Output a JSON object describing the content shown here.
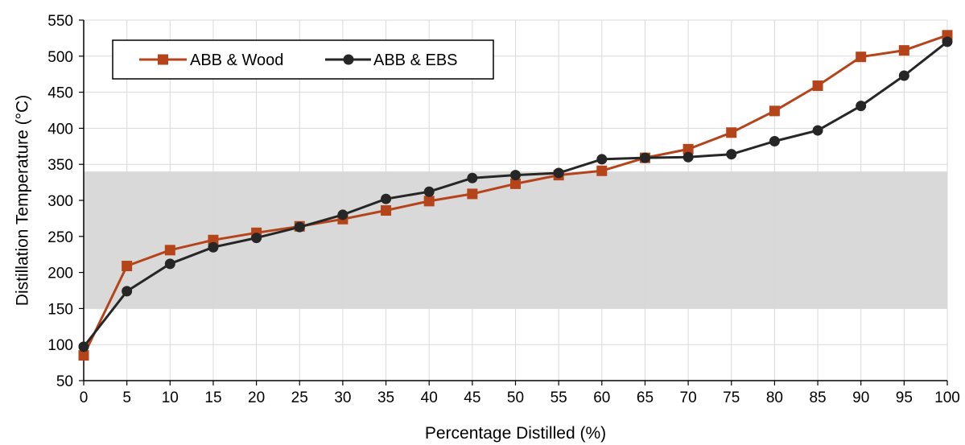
{
  "chart_data": {
    "type": "line",
    "title": "",
    "xlabel": "Percentage Distilled (%)",
    "ylabel": "Distillation Temperature (°C)",
    "xlim": [
      0,
      100
    ],
    "ylim": [
      50,
      550
    ],
    "x_ticks": [
      0,
      5,
      10,
      15,
      20,
      25,
      30,
      35,
      40,
      45,
      50,
      55,
      60,
      65,
      70,
      75,
      80,
      85,
      90,
      95,
      100
    ],
    "y_ticks": [
      50,
      100,
      150,
      200,
      250,
      300,
      350,
      400,
      450,
      500,
      550
    ],
    "x_tick_labels": [
      "0",
      "5",
      "10",
      "15",
      "20",
      "25",
      "30",
      "35",
      "40",
      "45",
      "50",
      "55",
      "60",
      "65",
      "70",
      "75",
      "80",
      "85",
      "90",
      "95",
      "100"
    ],
    "y_tick_labels": [
      "50",
      "100",
      "150",
      "200",
      "250",
      "300",
      "350",
      "400",
      "450",
      "500",
      "550"
    ],
    "grid": true,
    "legend_position": "top-left",
    "shaded_band": {
      "y_range": [
        150,
        340
      ],
      "color": "#d9d9d9"
    },
    "x": [
      0,
      5,
      10,
      15,
      20,
      25,
      30,
      35,
      40,
      45,
      50,
      55,
      60,
      65,
      70,
      75,
      80,
      85,
      90,
      95,
      100
    ],
    "series": [
      {
        "name": "ABB & Wood",
        "color": "#b5441a",
        "marker": "square",
        "values": [
          85,
          209,
          231,
          245,
          255,
          264,
          274,
          286,
          299,
          309,
          323,
          335,
          341,
          359,
          371,
          394,
          424,
          459,
          499,
          508,
          529
        ]
      },
      {
        "name": "ABB & EBS",
        "color": "#262626",
        "marker": "circle",
        "values": [
          97,
          174,
          212,
          235,
          248,
          263,
          280,
          302,
          312,
          331,
          335,
          338,
          357,
          359,
          360,
          364,
          382,
          397,
          431,
          473,
          520
        ]
      }
    ]
  }
}
